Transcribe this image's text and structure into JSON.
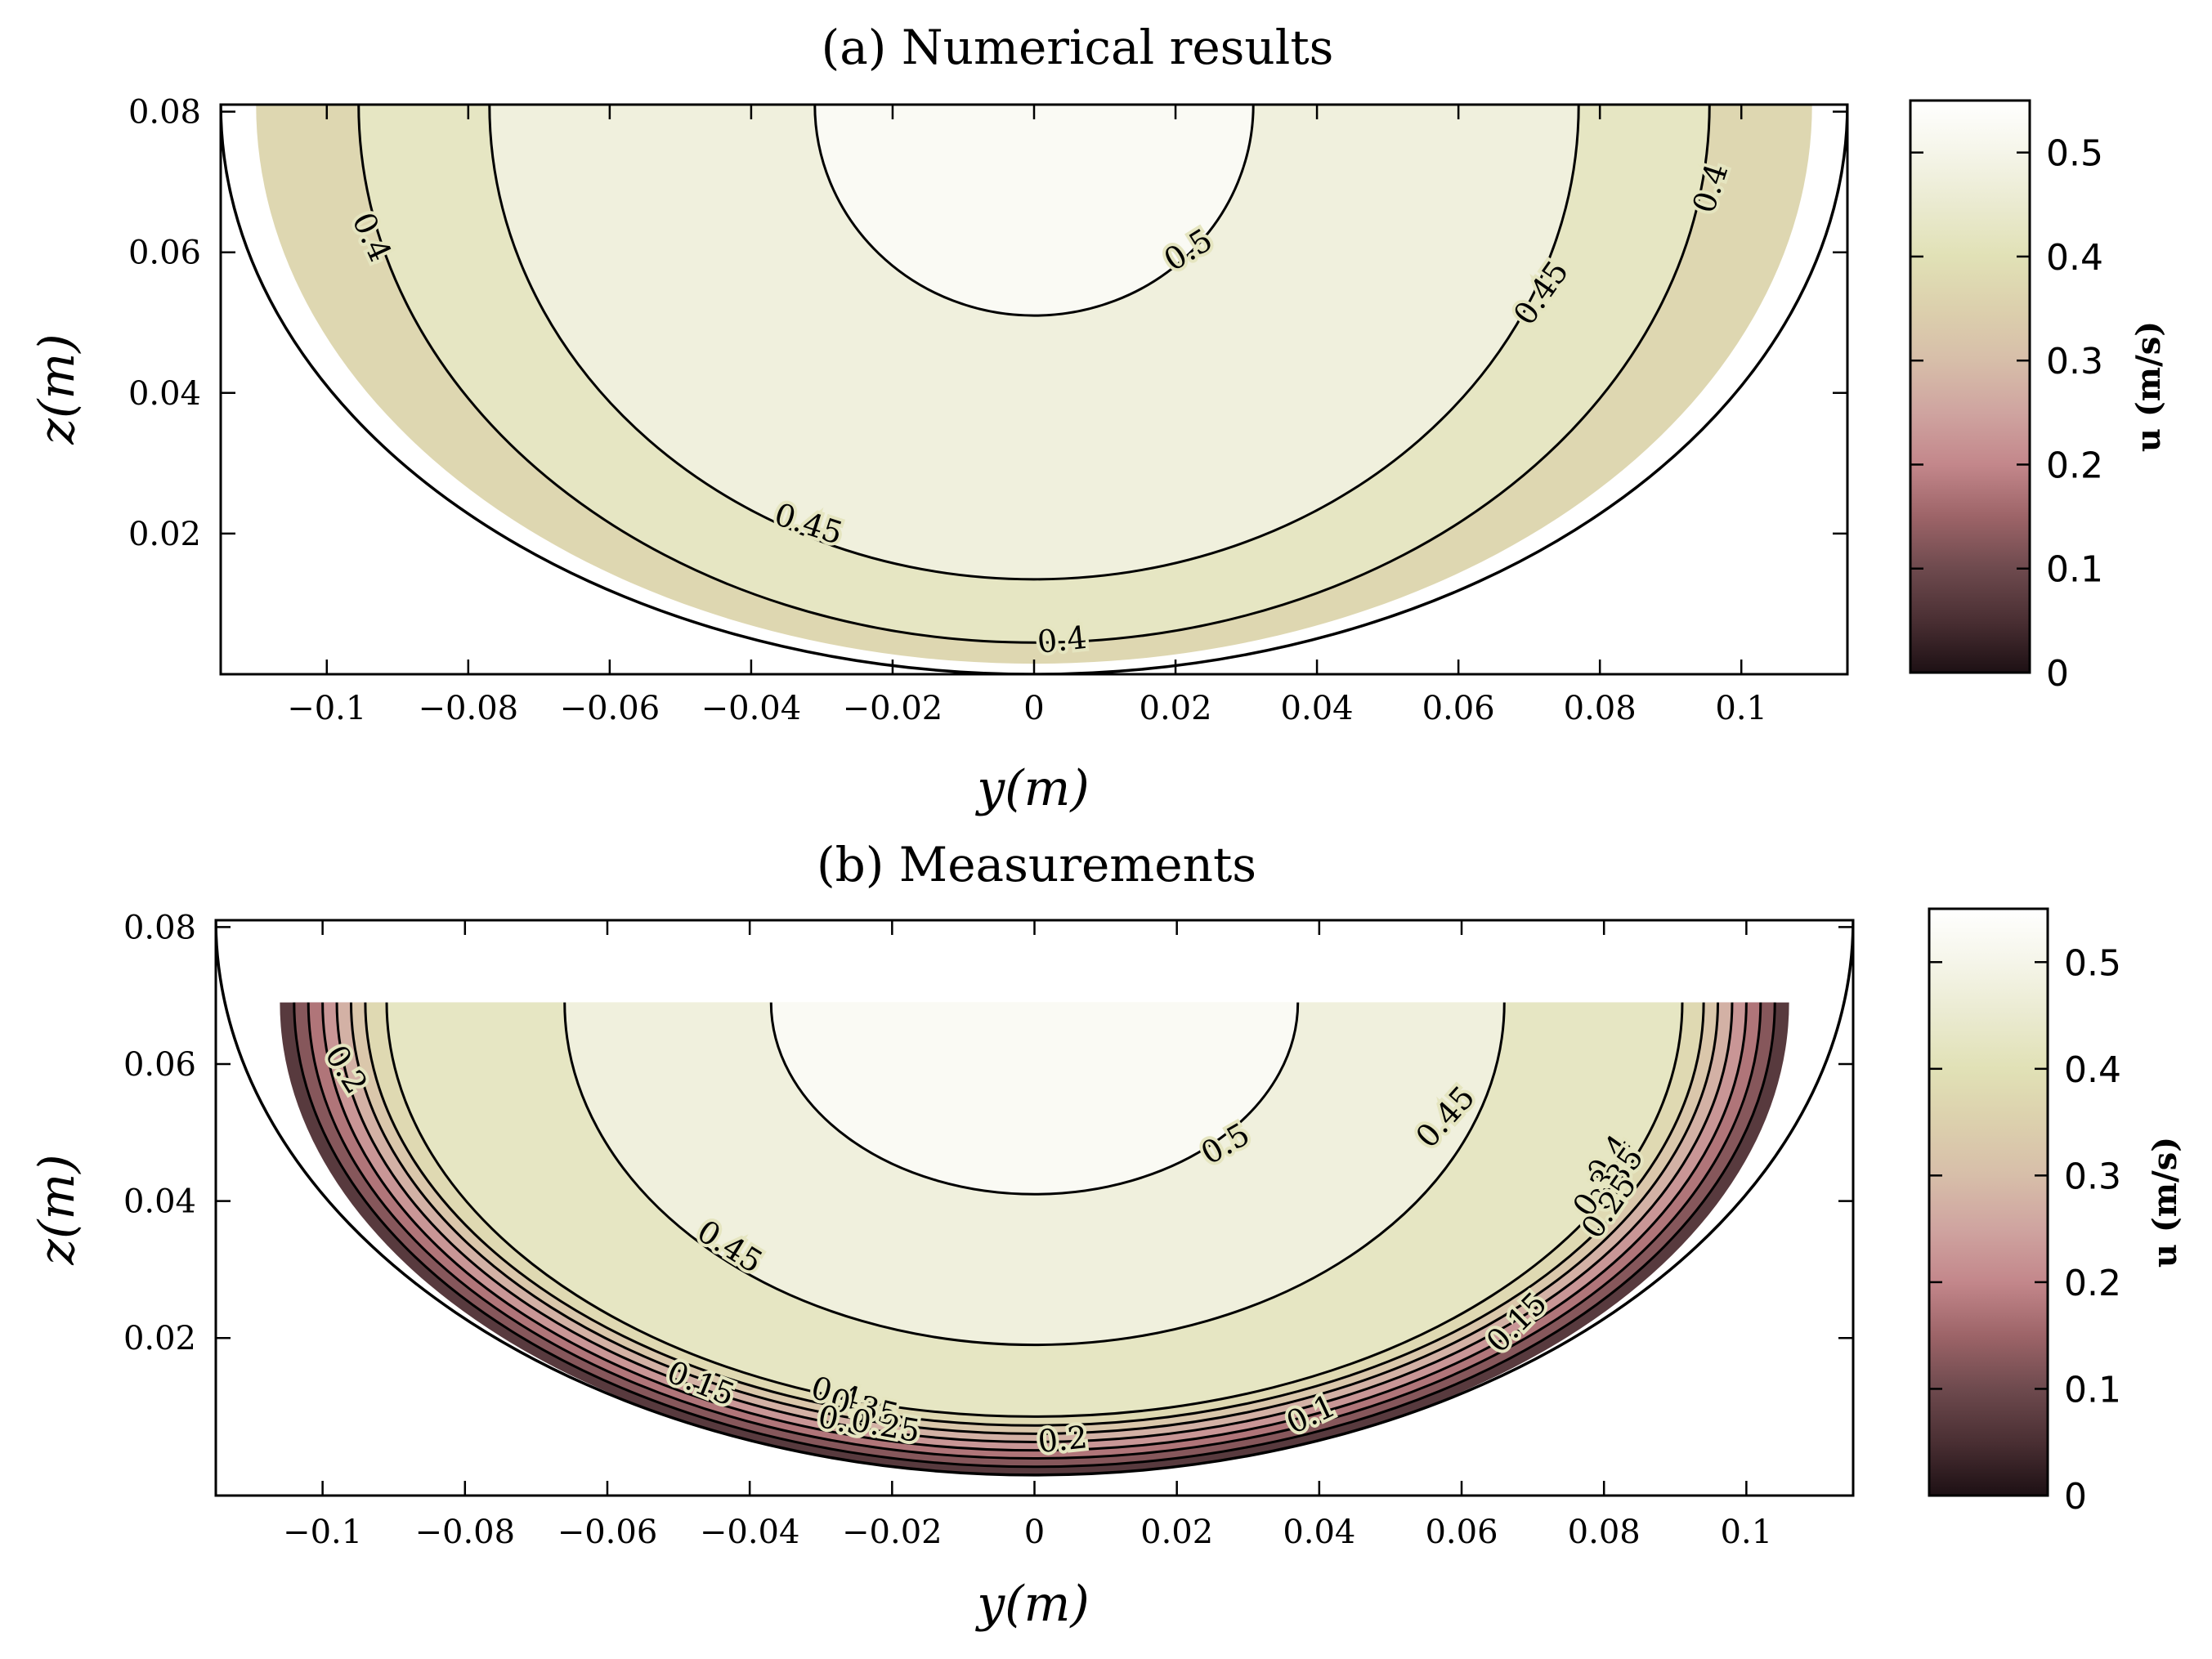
{
  "chart_data": [
    {
      "type": "contour",
      "title": "(a) Numerical results",
      "xlabel": "y(m)",
      "ylabel": "z(m)",
      "xlim": [
        -0.115,
        0.115
      ],
      "ylim": [
        0,
        0.081
      ],
      "xticks": [
        -0.1,
        -0.08,
        -0.06,
        -0.04,
        -0.02,
        0,
        0.02,
        0.04,
        0.06,
        0.08,
        0.1
      ],
      "xtick_labels": [
        "−0.1",
        "−0.08",
        "−0.06",
        "−0.04",
        "−0.02",
        "0",
        "0.02",
        "0.04",
        "0.06",
        "0.08",
        "0.1"
      ],
      "yticks": [
        0.02,
        0.04,
        0.06,
        0.08
      ],
      "ytick_labels": [
        "0.02",
        "0.04",
        "0.06",
        "0.08"
      ],
      "boundary": {
        "shape": "semicircle",
        "radius": 0.115,
        "center_z": 0.081
      },
      "fill_top_z": 0.081,
      "fill_half_width": 0.11,
      "levels": [
        0.35,
        0.4,
        0.45,
        0.5
      ],
      "peak_value": 0.53,
      "contours": [
        {
          "level": 0.5,
          "half_width": 0.031,
          "bottom_z": 0.051
        },
        {
          "level": 0.45,
          "half_width": 0.077,
          "bottom_z": 0.0135
        },
        {
          "level": 0.4,
          "half_width": 0.0955,
          "bottom_z": 0.0045
        }
      ],
      "contour_labels": [
        {
          "text": "0.5",
          "y": 0.022,
          "z": 0.06,
          "angle": -32
        },
        {
          "text": "0.45",
          "y": 0.072,
          "z": 0.054,
          "angle": -55
        },
        {
          "text": "0.45",
          "y": -0.032,
          "z": 0.021,
          "angle": 18
        },
        {
          "text": "0.4",
          "y": 0.004,
          "z": 0.0045,
          "angle": -6
        },
        {
          "text": "0.4",
          "y": -0.094,
          "z": 0.062,
          "angle": 65
        },
        {
          "text": "0.4",
          "y": 0.096,
          "z": 0.069,
          "angle": -72
        }
      ],
      "colorbar": {
        "label": "u (m/s)",
        "range": [
          0,
          0.55
        ],
        "ticks": [
          0,
          0.1,
          0.2,
          0.3,
          0.4,
          0.5
        ],
        "tick_labels": [
          "0",
          "0.1",
          "0.2",
          "0.3",
          "0.4",
          "0.5"
        ]
      }
    },
    {
      "type": "contour",
      "title": "(b) Measurements",
      "xlabel": "y(m)",
      "ylabel": "z(m)",
      "xlim": [
        -0.115,
        0.115
      ],
      "ylim": [
        -0.003,
        0.081
      ],
      "xticks": [
        -0.1,
        -0.08,
        -0.06,
        -0.04,
        -0.02,
        0,
        0.02,
        0.04,
        0.06,
        0.08,
        0.1
      ],
      "xtick_labels": [
        "−0.1",
        "−0.08",
        "−0.06",
        "−0.04",
        "−0.02",
        "0",
        "0.02",
        "0.04",
        "0.06",
        "0.08",
        "0.1"
      ],
      "yticks": [
        0.02,
        0.04,
        0.06,
        0.08
      ],
      "ytick_labels": [
        "0.02",
        "0.04",
        "0.06",
        "0.08"
      ],
      "boundary": {
        "shape": "semicircle",
        "radius": 0.115,
        "center_z": 0.081
      },
      "fill_top_z": 0.069,
      "fill_half_width": 0.106,
      "levels": [
        0.05,
        0.1,
        0.15,
        0.2,
        0.25,
        0.3,
        0.35,
        0.4,
        0.45,
        0.5
      ],
      "peak_value": 0.53,
      "contours": [
        {
          "level": 0.5,
          "half_width": 0.037,
          "bottom_z": 0.041
        },
        {
          "level": 0.45,
          "half_width": 0.066,
          "bottom_z": 0.019
        },
        {
          "level": 0.4,
          "half_width": 0.091,
          "bottom_z": 0.0085
        },
        {
          "level": 0.35,
          "half_width": 0.094,
          "bottom_z": 0.0072
        },
        {
          "level": 0.3,
          "half_width": 0.096,
          "bottom_z": 0.006
        },
        {
          "level": 0.25,
          "half_width": 0.098,
          "bottom_z": 0.0048
        },
        {
          "level": 0.2,
          "half_width": 0.1,
          "bottom_z": 0.0036
        },
        {
          "level": 0.15,
          "half_width": 0.102,
          "bottom_z": 0.0024
        },
        {
          "level": 0.1,
          "half_width": 0.104,
          "bottom_z": 0.0012
        }
      ],
      "contour_labels": [
        {
          "text": "0.5",
          "y": 0.027,
          "z": 0.048,
          "angle": -30
        },
        {
          "text": "0.45",
          "y": 0.058,
          "z": 0.052,
          "angle": -48
        },
        {
          "text": "0.45",
          "y": -0.043,
          "z": 0.033,
          "angle": 32
        },
        {
          "text": "0.2",
          "y": -0.097,
          "z": 0.059,
          "angle": 58
        },
        {
          "text": "0.15",
          "y": -0.047,
          "z": 0.013,
          "angle": 22
        },
        {
          "text": "0.4",
          "y": -0.028,
          "z": 0.0115,
          "angle": 16
        },
        {
          "text": "0.35",
          "y": -0.024,
          "z": 0.0095,
          "angle": 14
        },
        {
          "text": "0.3",
          "y": -0.027,
          "z": 0.0075,
          "angle": 12
        },
        {
          "text": "0.25",
          "y": -0.021,
          "z": 0.0068,
          "angle": 10
        },
        {
          "text": "0.2",
          "y": 0.004,
          "z": 0.0048,
          "angle": -6
        },
        {
          "text": "0.1",
          "y": 0.039,
          "z": 0.0085,
          "angle": -25
        },
        {
          "text": "0.15",
          "y": 0.068,
          "z": 0.022,
          "angle": -45
        },
        {
          "text": "0.4",
          "y": 0.081,
          "z": 0.046,
          "angle": -55
        },
        {
          "text": "0.35",
          "y": 0.082,
          "z": 0.043,
          "angle": -55
        },
        {
          "text": "0.3",
          "y": 0.079,
          "z": 0.041,
          "angle": -55
        },
        {
          "text": "0.25",
          "y": 0.081,
          "z": 0.039,
          "angle": -55
        }
      ],
      "colorbar": {
        "label": "u (m/s)",
        "range": [
          0,
          0.55
        ],
        "ticks": [
          0,
          0.1,
          0.2,
          0.3,
          0.4,
          0.5
        ],
        "tick_labels": [
          "0",
          "0.1",
          "0.2",
          "0.3",
          "0.4",
          "0.5"
        ]
      }
    }
  ],
  "colormap": [
    {
      "value": 0.0,
      "color": "#1d1014"
    },
    {
      "value": 0.05,
      "color": "#4a2f33"
    },
    {
      "value": 0.1,
      "color": "#6e4a4e"
    },
    {
      "value": 0.15,
      "color": "#9d6468"
    },
    {
      "value": 0.2,
      "color": "#c3878b"
    },
    {
      "value": 0.25,
      "color": "#cfa4a0"
    },
    {
      "value": 0.3,
      "color": "#d7bea9"
    },
    {
      "value": 0.35,
      "color": "#dcd0ad"
    },
    {
      "value": 0.4,
      "color": "#e1e1b6"
    },
    {
      "value": 0.45,
      "color": "#eaead0"
    },
    {
      "value": 0.5,
      "color": "#f5f5e9"
    },
    {
      "value": 0.55,
      "color": "#ffffff"
    }
  ],
  "style": {
    "line_color": "#000000",
    "background": "#ffffff"
  }
}
